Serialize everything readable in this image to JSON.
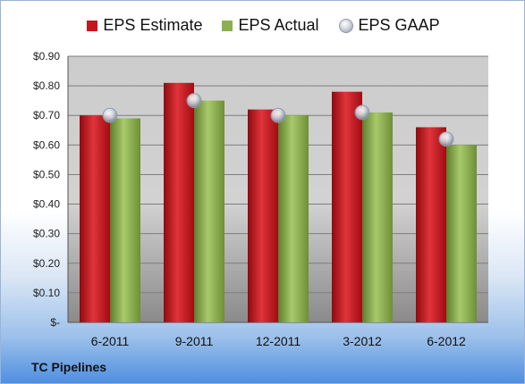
{
  "company": "TC Pipelines",
  "chart_data": {
    "type": "bar",
    "categories": [
      "6-2011",
      "9-2011",
      "12-2011",
      "3-2012",
      "6-2012"
    ],
    "series": [
      {
        "name": "EPS Estimate",
        "type": "bar",
        "color": "#c8141c",
        "values": [
          0.7,
          0.81,
          0.72,
          0.78,
          0.66
        ]
      },
      {
        "name": "EPS Actual",
        "type": "bar",
        "color": "#8cb050",
        "values": [
          0.69,
          0.75,
          0.7,
          0.71,
          0.6
        ]
      },
      {
        "name": "EPS GAAP",
        "type": "scatter",
        "color": "#c8ccd6",
        "values": [
          0.7,
          0.75,
          0.7,
          0.71,
          0.62
        ]
      }
    ],
    "ylim": [
      0,
      0.9
    ],
    "yticks": [
      0,
      0.1,
      0.2,
      0.3,
      0.4,
      0.5,
      0.6,
      0.7,
      0.8,
      0.9
    ],
    "ytick_labels": [
      "$-",
      "$0.10",
      "$0.20",
      "$0.30",
      "$0.40",
      "$0.50",
      "$0.60",
      "$0.70",
      "$0.80",
      "$0.90"
    ],
    "grid": true,
    "legend_position": "top"
  }
}
